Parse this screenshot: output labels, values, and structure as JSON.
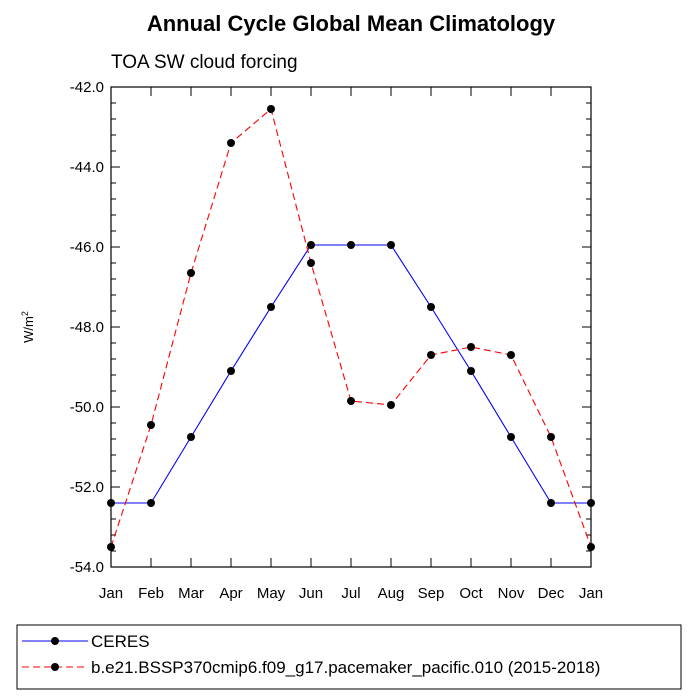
{
  "chart_data": {
    "type": "line",
    "title": "Annual Cycle Global Mean Climatology",
    "subtitle": "TOA SW cloud forcing",
    "ylabel": "W/m",
    "ylabel_sup": "2",
    "xlabel": "",
    "categories": [
      "Jan",
      "Feb",
      "Mar",
      "Apr",
      "May",
      "Jun",
      "Jul",
      "Aug",
      "Sep",
      "Oct",
      "Nov",
      "Dec",
      "Jan"
    ],
    "ylim": [
      -54.0,
      -42.0
    ],
    "yticks": [
      -54.0,
      -52.0,
      -50.0,
      -48.0,
      -46.0,
      -44.0,
      -42.0
    ],
    "ytick_labels": [
      "-54.0",
      "-52.0",
      "-50.0",
      "-48.0",
      "-46.0",
      "-44.0",
      "-42.0"
    ],
    "grid": false,
    "legend_position": "bottom",
    "series": [
      {
        "name": "CERES",
        "color": "#0000ff",
        "dash": "solid",
        "values": [
          -52.4,
          -52.4,
          -50.75,
          -49.1,
          -47.5,
          -45.95,
          -45.95,
          -45.95,
          -47.5,
          -49.1,
          -50.75,
          -52.4,
          -52.4
        ]
      },
      {
        "name": "b.e21.BSSP370cmip6.f09_g17.pacemaker_pacific.010 (2015-2018)",
        "color": "#ff0000",
        "dash": "dashed",
        "values": [
          -53.5,
          -50.45,
          -46.65,
          -43.4,
          -42.55,
          -46.4,
          -49.85,
          -49.95,
          -48.7,
          -48.5,
          -48.7,
          -50.75,
          -53.5
        ]
      }
    ]
  }
}
